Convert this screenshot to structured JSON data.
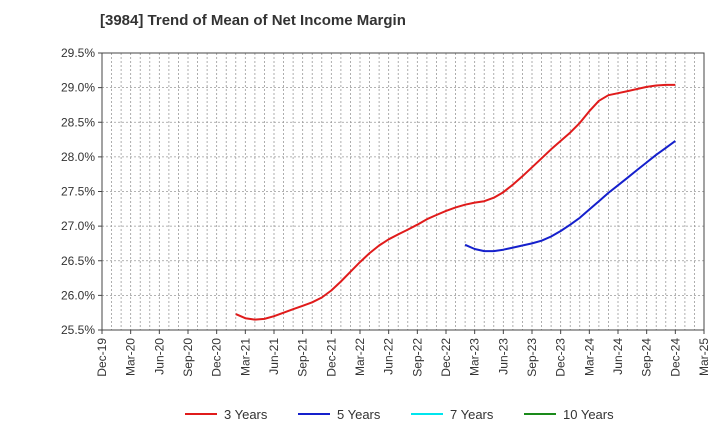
{
  "chart_data": {
    "type": "line",
    "title": "[3984]  Trend of Mean of Net Income Margin",
    "xlabel": "",
    "ylabel": "",
    "ylim": [
      25.5,
      29.5
    ],
    "grid": true,
    "legend_position": "bottom",
    "y_ticks": [
      "25.5%",
      "26.0%",
      "26.5%",
      "27.0%",
      "27.5%",
      "28.0%",
      "28.5%",
      "29.0%",
      "29.5%"
    ],
    "x_ticks": [
      "Dec-19",
      "Mar-20",
      "Jun-20",
      "Sep-20",
      "Dec-20",
      "Mar-21",
      "Jun-21",
      "Sep-21",
      "Dec-21",
      "Mar-22",
      "Jun-22",
      "Sep-22",
      "Dec-22",
      "Mar-23",
      "Jun-23",
      "Sep-23",
      "Dec-23",
      "Mar-24",
      "Jun-24",
      "Sep-24",
      "Dec-24",
      "Mar-25"
    ],
    "series": [
      {
        "name": "3 Years",
        "color": "#e01b1b",
        "x": [
          "Feb-21",
          "Mar-21",
          "Apr-21",
          "May-21",
          "Jun-21",
          "Jul-21",
          "Aug-21",
          "Sep-21",
          "Oct-21",
          "Nov-21",
          "Dec-21",
          "Jan-22",
          "Feb-22",
          "Mar-22",
          "Apr-22",
          "May-22",
          "Jun-22",
          "Jul-22",
          "Aug-22",
          "Sep-22",
          "Oct-22",
          "Nov-22",
          "Dec-22",
          "Jan-23",
          "Feb-23",
          "Mar-23",
          "Apr-23",
          "May-23",
          "Jun-23",
          "Jul-23",
          "Aug-23",
          "Sep-23",
          "Oct-23",
          "Nov-23",
          "Dec-23",
          "Jan-24",
          "Feb-24",
          "Mar-24",
          "Apr-24",
          "May-24",
          "Jun-24",
          "Jul-24",
          "Aug-24",
          "Sep-24",
          "Oct-24",
          "Nov-24",
          "Dec-24"
        ],
        "y": [
          25.73,
          25.67,
          25.65,
          25.66,
          25.7,
          25.75,
          25.8,
          25.85,
          25.9,
          25.97,
          26.07,
          26.2,
          26.34,
          26.48,
          26.61,
          26.72,
          26.81,
          26.88,
          26.95,
          27.02,
          27.1,
          27.16,
          27.22,
          27.27,
          27.31,
          27.34,
          27.36,
          27.41,
          27.49,
          27.6,
          27.72,
          27.85,
          27.98,
          28.11,
          28.23,
          28.35,
          28.49,
          28.66,
          28.81,
          28.89,
          28.92,
          28.95,
          28.98,
          29.01,
          29.03,
          29.04,
          29.04
        ]
      },
      {
        "name": "5 Years",
        "color": "#1520cc",
        "x": [
          "Feb-23",
          "Mar-23",
          "Apr-23",
          "May-23",
          "Jun-23",
          "Jul-23",
          "Aug-23",
          "Sep-23",
          "Oct-23",
          "Nov-23",
          "Dec-23",
          "Jan-24",
          "Feb-24",
          "Mar-24",
          "Apr-24",
          "May-24",
          "Jun-24",
          "Jul-24",
          "Aug-24",
          "Sep-24",
          "Oct-24",
          "Nov-24",
          "Dec-24"
        ],
        "y": [
          26.73,
          26.67,
          26.64,
          26.64,
          26.66,
          26.69,
          26.72,
          26.75,
          26.79,
          26.85,
          26.93,
          27.02,
          27.12,
          27.24,
          27.36,
          27.48,
          27.59,
          27.7,
          27.81,
          27.92,
          28.03,
          28.13,
          28.23
        ]
      },
      {
        "name": "7 Years",
        "color": "#00e5ee",
        "x": [],
        "y": []
      },
      {
        "name": "10 Years",
        "color": "#1a8a1a",
        "x": [],
        "y": []
      }
    ]
  }
}
